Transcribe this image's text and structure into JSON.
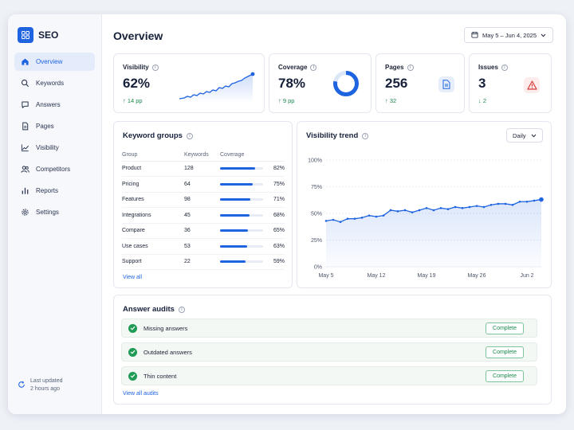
{
  "app": {
    "name": "SEO",
    "brand_color": "#1e63e0"
  },
  "sidebar": {
    "items": [
      {
        "label": "Overview",
        "icon": "home-icon",
        "active": true
      },
      {
        "label": "Keywords",
        "icon": "search-icon"
      },
      {
        "label": "Answers",
        "icon": "chat-icon"
      },
      {
        "label": "Pages",
        "icon": "document-icon"
      },
      {
        "label": "Visibility",
        "icon": "chart-icon"
      },
      {
        "label": "Competitors",
        "icon": "users-icon"
      },
      {
        "label": "Reports",
        "icon": "bar-chart-icon"
      },
      {
        "label": "Settings",
        "icon": "gear-icon"
      }
    ],
    "updated_label": "Last updated",
    "updated_time": "2 hours ago"
  },
  "header": {
    "title": "Overview",
    "date_range": "May 5 – Jun 4, 2025"
  },
  "kpis": {
    "visibility": {
      "label": "Visibility",
      "value": "62%",
      "delta": "↑ 14 pp"
    },
    "coverage": {
      "label": "Coverage",
      "value": "78%",
      "delta": "↑ 9 pp",
      "donut_fraction": 0.78
    },
    "pages": {
      "label": "Pages",
      "value": "256",
      "delta": "↑ 32"
    },
    "issues": {
      "label": "Issues",
      "value": "3",
      "delta": "↓ 2"
    }
  },
  "keyword_groups": {
    "title": "Keyword groups",
    "columns": [
      "Group",
      "Keywords",
      "Coverage"
    ],
    "rows": [
      {
        "group": "Product",
        "keywords": "128",
        "coverage": "82%",
        "fraction": 0.82
      },
      {
        "group": "Pricing",
        "keywords": "64",
        "coverage": "75%",
        "fraction": 0.75
      },
      {
        "group": "Features",
        "keywords": "98",
        "coverage": "71%",
        "fraction": 0.71
      },
      {
        "group": "Integrations",
        "keywords": "45",
        "coverage": "68%",
        "fraction": 0.68
      },
      {
        "group": "Compare",
        "keywords": "36",
        "coverage": "65%",
        "fraction": 0.65
      },
      {
        "group": "Use cases",
        "keywords": "53",
        "coverage": "63%",
        "fraction": 0.63
      },
      {
        "group": "Support",
        "keywords": "22",
        "coverage": "59%",
        "fraction": 0.59
      }
    ],
    "view_all": "View all"
  },
  "visibility_trend": {
    "title": "Visibility trend",
    "granularity": "Daily"
  },
  "chart_data": {
    "type": "area",
    "title": "Visibility trend",
    "xlabel": "",
    "ylabel": "",
    "x_ticks": [
      "May 5",
      "May 12",
      "May 19",
      "May 26",
      "Jun 2"
    ],
    "y_ticks": [
      "0%",
      "25%",
      "50%",
      "75%",
      "100%"
    ],
    "ylim": [
      0,
      100
    ],
    "grid": true,
    "x": [
      "May 5",
      "May 6",
      "May 7",
      "May 8",
      "May 9",
      "May 10",
      "May 11",
      "May 12",
      "May 13",
      "May 14",
      "May 15",
      "May 16",
      "May 17",
      "May 18",
      "May 19",
      "May 20",
      "May 21",
      "May 22",
      "May 23",
      "May 24",
      "May 25",
      "May 26",
      "May 27",
      "May 28",
      "May 29",
      "May 30",
      "May 31",
      "Jun 1",
      "Jun 2",
      "Jun 3",
      "Jun 4"
    ],
    "values": [
      43,
      44,
      42,
      45,
      45,
      46,
      48,
      47,
      48,
      53,
      52,
      53,
      51,
      53,
      55,
      53,
      55,
      54,
      56,
      55,
      56,
      57,
      56,
      58,
      59,
      59,
      58,
      61,
      61,
      62,
      63
    ],
    "series_color": "#1e63e0"
  },
  "answer_audits": {
    "title": "Answer audits",
    "rows": [
      {
        "label": "Missing answers",
        "status": "Complete"
      },
      {
        "label": "Outdated answers",
        "status": "Complete"
      },
      {
        "label": "Thin content",
        "status": "Complete"
      }
    ],
    "view_all": "View all audits"
  },
  "colors": {
    "positive": "#1b8a4c",
    "warning": "#d83a3a",
    "accent": "#1e63e0"
  }
}
